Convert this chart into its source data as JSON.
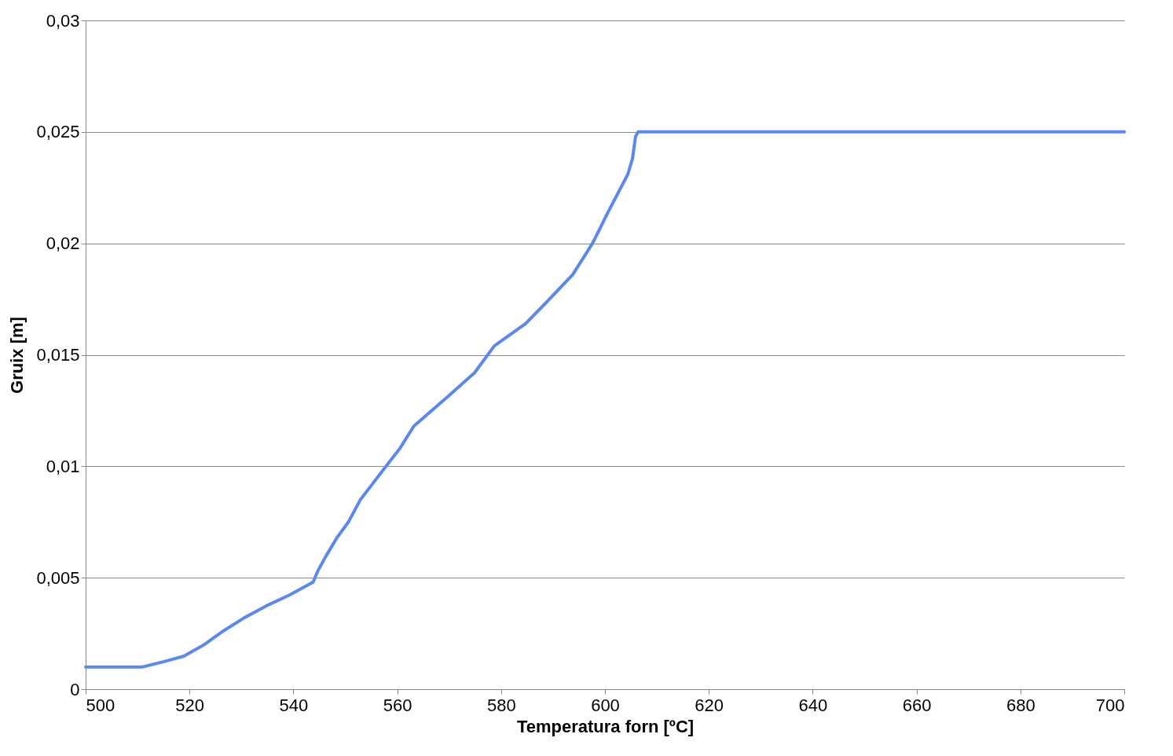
{
  "chart_data": {
    "type": "line",
    "xlabel": "Temperatura forn [ºC]",
    "ylabel": "Gruix [m]",
    "x": [
      500,
      511,
      515.1,
      518.9,
      522.7,
      526.5,
      530.3,
      534.8,
      539.3,
      543.8,
      544.7,
      546.1,
      548.4,
      550.6,
      552.9,
      557.5,
      560.5,
      563.2,
      569.6,
      574.9,
      578.7,
      584.7,
      588.5,
      593.8,
      597.6,
      600.6,
      604.4,
      605.3,
      605.9,
      606.4,
      700
    ],
    "series": [
      {
        "color": "#5b87f0",
        "values": [
          0.001,
          0.001,
          0.00124,
          0.00148,
          0.00198,
          0.00261,
          0.00317,
          0.00374,
          0.00423,
          0.0048,
          0.0053,
          0.0059,
          0.0068,
          0.0075,
          0.0085,
          0.0099,
          0.0108,
          0.0118,
          0.0131,
          0.0142,
          0.0154,
          0.0164,
          0.0173,
          0.0186,
          0.02,
          0.0214,
          0.0231,
          0.0238,
          0.0248,
          0.025,
          0.025
        ]
      }
    ],
    "xlim": [
      500,
      700
    ],
    "xticks": [
      500,
      520,
      540,
      560,
      580,
      600,
      620,
      640,
      660,
      680,
      700
    ],
    "ylim": [
      0,
      0.03
    ],
    "yticks": [
      0,
      {
        "value": 0.005,
        "label": "0,005"
      },
      {
        "value": 0.01,
        "label": "0,01"
      },
      {
        "value": 0.015,
        "label": "0,015"
      },
      {
        "value": 0.02,
        "label": "0,02"
      },
      {
        "value": 0.025,
        "label": "0,025"
      },
      {
        "value": 0.03,
        "label": "0,03"
      }
    ],
    "grid": "y",
    "legend": false,
    "marker": "none",
    "line_style": "solid"
  }
}
